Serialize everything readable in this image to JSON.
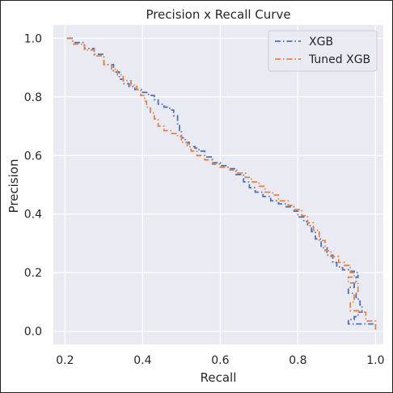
{
  "chart_data": {
    "type": "line",
    "title": "Precision x Recall Curve",
    "xlabel": "Recall",
    "ylabel": "Precision",
    "xlim": [
      0.17,
      1.02
    ],
    "ylim": [
      -0.045,
      1.045
    ],
    "xticks": [
      "0.2",
      "0.4",
      "0.6",
      "0.8",
      "1.0"
    ],
    "yticks": [
      "0.0",
      "0.2",
      "0.4",
      "0.6",
      "0.8",
      "1.0"
    ],
    "grid": true,
    "legend_position": "top-right",
    "series": [
      {
        "name": "XGB",
        "color": "#4C72B0",
        "dash": "dashdot",
        "x": [
          0.205,
          0.22,
          0.25,
          0.275,
          0.3,
          0.325,
          0.34,
          0.35,
          0.365,
          0.38,
          0.4,
          0.415,
          0.43,
          0.44,
          0.455,
          0.47,
          0.48,
          0.49,
          0.495,
          0.5,
          0.51,
          0.52,
          0.535,
          0.545,
          0.56,
          0.58,
          0.6,
          0.62,
          0.64,
          0.66,
          0.675,
          0.69,
          0.71,
          0.73,
          0.75,
          0.77,
          0.79,
          0.8,
          0.815,
          0.825,
          0.835,
          0.845,
          0.86,
          0.875,
          0.89,
          0.9,
          0.915,
          0.93,
          0.945,
          0.955,
          0.95,
          0.945,
          0.93,
          0.95,
          0.96,
          0.965,
          0.955,
          0.945,
          0.93,
          1.0,
          1.0
        ],
        "y": [
          1.0,
          0.985,
          0.965,
          0.945,
          0.91,
          0.885,
          0.86,
          0.845,
          0.835,
          0.825,
          0.815,
          0.805,
          0.79,
          0.775,
          0.765,
          0.755,
          0.735,
          0.705,
          0.685,
          0.66,
          0.645,
          0.63,
          0.625,
          0.615,
          0.595,
          0.575,
          0.565,
          0.555,
          0.535,
          0.51,
          0.49,
          0.475,
          0.46,
          0.445,
          0.435,
          0.425,
          0.41,
          0.39,
          0.375,
          0.36,
          0.34,
          0.315,
          0.285,
          0.26,
          0.235,
          0.22,
          0.21,
          0.205,
          0.2,
          0.185,
          0.165,
          0.15,
          0.13,
          0.11,
          0.09,
          0.065,
          0.05,
          0.04,
          0.025,
          0.025,
          0.02
        ]
      },
      {
        "name": "Tuned XGB",
        "color": "#DD8452",
        "dash": "dashdot",
        "x": [
          0.205,
          0.22,
          0.25,
          0.275,
          0.3,
          0.32,
          0.335,
          0.35,
          0.37,
          0.385,
          0.395,
          0.405,
          0.41,
          0.42,
          0.43,
          0.44,
          0.455,
          0.475,
          0.49,
          0.5,
          0.515,
          0.525,
          0.54,
          0.56,
          0.58,
          0.6,
          0.625,
          0.645,
          0.665,
          0.68,
          0.7,
          0.715,
          0.735,
          0.75,
          0.775,
          0.79,
          0.81,
          0.825,
          0.84,
          0.855,
          0.87,
          0.885,
          0.905,
          0.92,
          0.935,
          0.945,
          0.93,
          0.955,
          0.945,
          0.935,
          0.96,
          0.975,
          1.0,
          1.0
        ],
        "y": [
          1.0,
          0.98,
          0.96,
          0.94,
          0.91,
          0.895,
          0.875,
          0.855,
          0.84,
          0.825,
          0.805,
          0.785,
          0.765,
          0.745,
          0.725,
          0.7,
          0.685,
          0.675,
          0.665,
          0.645,
          0.63,
          0.615,
          0.6,
          0.585,
          0.57,
          0.56,
          0.55,
          0.54,
          0.525,
          0.51,
          0.495,
          0.475,
          0.465,
          0.445,
          0.43,
          0.415,
          0.395,
          0.37,
          0.345,
          0.31,
          0.275,
          0.255,
          0.235,
          0.225,
          0.2,
          0.185,
          0.165,
          0.13,
          0.1,
          0.07,
          0.065,
          0.035,
          0.035,
          0.005
        ]
      }
    ]
  }
}
